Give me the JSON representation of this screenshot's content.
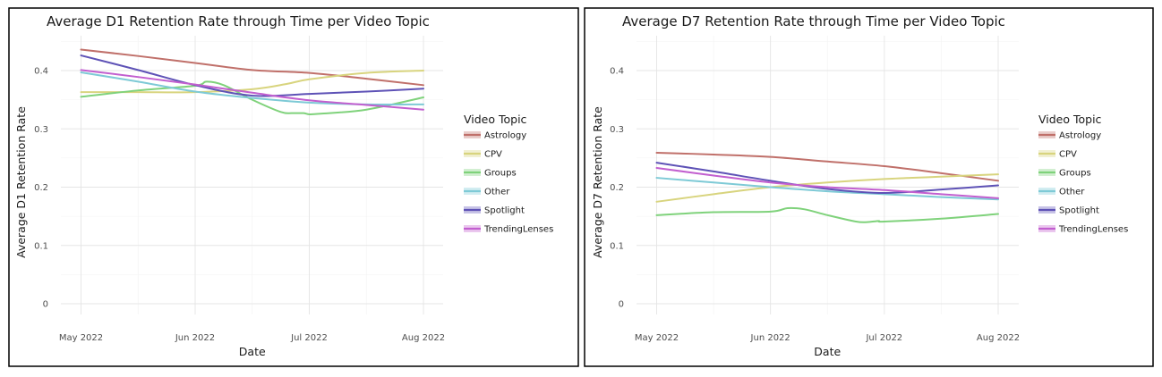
{
  "chart_data": [
    {
      "type": "line",
      "title": "Average D1 Retention Rate through Time per Video Topic",
      "xlabel": "Date",
      "ylabel": "Average D1 Retention Rate",
      "x_ticks": [
        "May 2022",
        "Jun 2022",
        "Jul 2022",
        "Aug 2022"
      ],
      "x_range": [
        0,
        3
      ],
      "y_ticks": [
        "0",
        "0.1",
        "0.2",
        "0.3",
        "0.4"
      ],
      "ylim": [
        0,
        0.45
      ],
      "legend_title": "Video Topic",
      "legend_position": "right",
      "series": [
        {
          "name": "Astrology",
          "color": "#c0706a",
          "x": [
            0,
            0.5,
            1,
            1.5,
            2,
            2.5,
            3
          ],
          "values": [
            0.436,
            0.425,
            0.413,
            0.401,
            0.396,
            0.386,
            0.375
          ]
        },
        {
          "name": "CPV",
          "color": "#d8d47e",
          "x": [
            0,
            0.5,
            1,
            1.5,
            1.8,
            2,
            2.5,
            3
          ],
          "values": [
            0.363,
            0.363,
            0.363,
            0.368,
            0.377,
            0.385,
            0.396,
            0.4
          ]
        },
        {
          "name": "Groups",
          "color": "#7fd27b",
          "x": [
            0,
            0.5,
            1,
            1.1,
            1.25,
            1.5,
            1.75,
            1.85,
            1.95,
            2.0,
            2.1,
            2.5,
            3
          ],
          "values": [
            0.355,
            0.366,
            0.374,
            0.381,
            0.375,
            0.35,
            0.329,
            0.327,
            0.327,
            0.325,
            0.326,
            0.333,
            0.354
          ]
        },
        {
          "name": "Other",
          "color": "#7ecad6",
          "x": [
            0,
            0.5,
            1,
            1.5,
            2,
            2.5,
            3
          ],
          "values": [
            0.397,
            0.381,
            0.364,
            0.353,
            0.345,
            0.342,
            0.342
          ]
        },
        {
          "name": "Spotlight",
          "color": "#5e52b6",
          "x": [
            0,
            0.5,
            1,
            1.5,
            2,
            2.5,
            3
          ],
          "values": [
            0.426,
            0.401,
            0.375,
            0.357,
            0.36,
            0.364,
            0.369
          ]
        },
        {
          "name": "TrendingLenses",
          "color": "#c25fcf",
          "x": [
            0,
            0.5,
            1,
            1.5,
            2,
            2.5,
            3
          ],
          "values": [
            0.401,
            0.389,
            0.376,
            0.362,
            0.349,
            0.341,
            0.333
          ]
        }
      ]
    },
    {
      "type": "line",
      "title": "Average D7 Retention Rate through Time per Video Topic",
      "xlabel": "Date",
      "ylabel": "Average D7 Retention Rate",
      "x_ticks": [
        "May 2022",
        "Jun 2022",
        "Jul 2022",
        "Aug 2022"
      ],
      "x_range": [
        0,
        3
      ],
      "y_ticks": [
        "0",
        "0.1",
        "0.2",
        "0.3",
        "0.4"
      ],
      "ylim": [
        0,
        0.45
      ],
      "legend_title": "Video Topic",
      "legend_position": "right",
      "series": [
        {
          "name": "Astrology",
          "color": "#c0706a",
          "x": [
            0,
            0.5,
            1,
            1.5,
            2,
            2.5,
            3
          ],
          "values": [
            0.259,
            0.256,
            0.252,
            0.244,
            0.236,
            0.224,
            0.211
          ]
        },
        {
          "name": "CPV",
          "color": "#d8d47e",
          "x": [
            0,
            0.5,
            1,
            1.5,
            2,
            2.5,
            3
          ],
          "values": [
            0.175,
            0.188,
            0.2,
            0.208,
            0.214,
            0.218,
            0.222
          ]
        },
        {
          "name": "Groups",
          "color": "#7fd27b",
          "x": [
            0,
            0.5,
            1,
            1.15,
            1.3,
            1.5,
            1.75,
            1.85,
            1.95,
            2.0,
            2.5,
            3
          ],
          "values": [
            0.152,
            0.157,
            0.158,
            0.164,
            0.162,
            0.152,
            0.141,
            0.14,
            0.142,
            0.141,
            0.146,
            0.154
          ]
        },
        {
          "name": "Other",
          "color": "#7ecad6",
          "x": [
            0,
            0.5,
            1,
            1.5,
            2,
            2.5,
            3
          ],
          "values": [
            0.216,
            0.208,
            0.2,
            0.193,
            0.188,
            0.183,
            0.179
          ]
        },
        {
          "name": "Spotlight",
          "color": "#5e52b6",
          "x": [
            0,
            0.5,
            1,
            1.5,
            2,
            2.5,
            3
          ],
          "values": [
            0.242,
            0.227,
            0.211,
            0.197,
            0.19,
            0.196,
            0.203
          ]
        },
        {
          "name": "TrendingLenses",
          "color": "#c25fcf",
          "x": [
            0,
            0.5,
            1,
            1.5,
            2,
            2.5,
            3
          ],
          "values": [
            0.233,
            0.22,
            0.208,
            0.2,
            0.195,
            0.188,
            0.181
          ]
        }
      ]
    }
  ]
}
